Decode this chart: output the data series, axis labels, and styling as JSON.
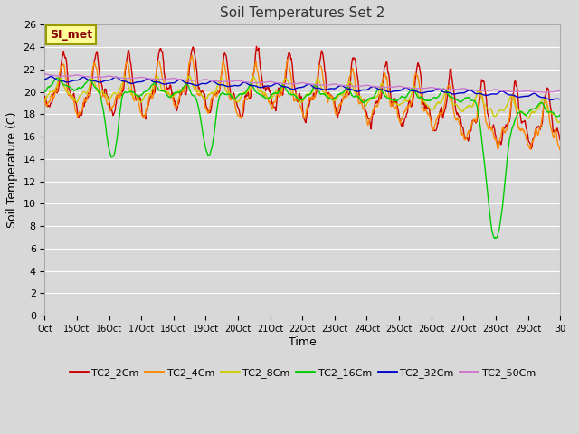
{
  "title": "Soil Temperatures Set 2",
  "xlabel": "Time",
  "ylabel": "Soil Temperature (C)",
  "ylim": [
    0,
    26
  ],
  "yticks": [
    0,
    2,
    4,
    6,
    8,
    10,
    12,
    14,
    16,
    18,
    20,
    22,
    24,
    26
  ],
  "xtick_labels": [
    "Oct",
    "15Oct",
    "16Oct",
    "17Oct",
    "18Oct",
    "19Oct",
    "20Oct",
    "21Oct",
    "22Oct",
    "23Oct",
    "24Oct",
    "25Oct",
    "26Oct",
    "27Oct",
    "28Oct",
    "29Oct",
    "30"
  ],
  "series_names": [
    "TC2_2Cm",
    "TC2_4Cm",
    "TC2_8Cm",
    "TC2_16Cm",
    "TC2_32Cm",
    "TC2_50Cm"
  ],
  "series_colors": [
    "#cc0000",
    "#ff8800",
    "#cccc00",
    "#00cc00",
    "#0000cc",
    "#cc77cc"
  ],
  "legend_label": "SI_met",
  "axes_bg": "#d8d8d8",
  "grid_color": "#ffffff",
  "fig_bg": "#d8d8d8",
  "n_points": 960
}
